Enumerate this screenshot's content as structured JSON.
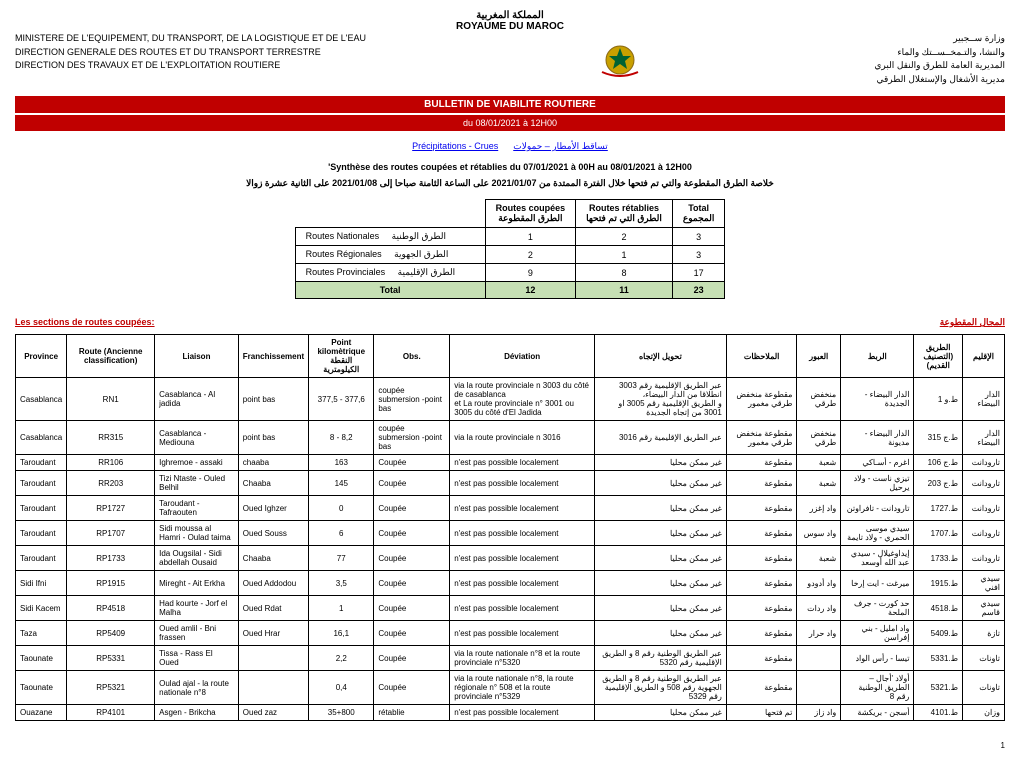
{
  "header": {
    "ar_title1": "المملكة المغربية",
    "fr_title": "ROYAUME DU MAROC",
    "left_line1": "MINISTERE DE L'EQUIPEMENT, DU TRANSPORT, DE LA LOGISTIQUE ET DE L'EAU",
    "left_line2": "DIRECTION GENERALE DES ROUTES ET DU TRANSPORT TERRESTRE",
    "left_line3": "DIRECTION DES TRAVAUX ET DE L'EXPLOITATION ROUTIERE",
    "right_line1": "وزارة ســجبير",
    "right_line2": "والنشا، والتـمخــســتك والماء",
    "right_line3": "المديرية العامة للطرق والنقل البري",
    "right_line4": "مديرية الأشغال والإستغلال الطرقي"
  },
  "bulletin": {
    "title": "BULLETIN DE VIABILITE ROUTIERE",
    "date": "du 08/01/2021 à 12H00"
  },
  "precip": {
    "fr": "Précipitations - Crues",
    "ar": "تساقط الأمطار – حمولات"
  },
  "synthesis": {
    "fr": "'Synthèse des routes coupées et rétablies du 07/01/2021 à 00H au 08/01/2021 à 12H00",
    "ar": "خلاصة الطرق المقطوعة والتي تم فتحها خلال الفترة الممتدة من 2021/01/07 على الساعة الثامنة صباحا إلى 2021/01/08 على الثانية عشرة زوالا"
  },
  "summary": {
    "col_coupees_fr": "Routes coupées",
    "col_coupees_ar": "الطرق المقطوعة",
    "col_retablies_fr": "Routes rétablies",
    "col_retablies_ar": "الطرق التي تم فتحها",
    "col_total": "Total",
    "col_total_ar": "المجموع",
    "rows": [
      {
        "type_fr": "Routes Nationales",
        "type_ar": "الطرق الوطنية",
        "c": "1",
        "r": "2",
        "t": "3"
      },
      {
        "type_fr": "Routes Régionales",
        "type_ar": "الطرق الجهوية",
        "c": "2",
        "r": "1",
        "t": "3"
      },
      {
        "type_fr": "Routes Provinciales",
        "type_ar": "الطرق الإقليمية",
        "c": "9",
        "r": "8",
        "t": "17"
      }
    ],
    "total_label": "Total",
    "total_c": "12",
    "total_r": "11",
    "total_t": "23"
  },
  "section": {
    "title_fr": "Les sections de routes coupées:",
    "title_ar": "المجال المقطوعة"
  },
  "table": {
    "headers": {
      "province": "Province",
      "route": "Route (Ancienne classification)",
      "liaison": "Liaison",
      "franch": "Franchissement",
      "pk1": "Point kilomètrique",
      "pk2": "النقطة الكيلومترية",
      "obs": "Obs.",
      "deviation": "Déviation",
      "tahwil": "تحويل الإتجاه",
      "molah": "الملاحظات",
      "obour": "العبور",
      "ribat": "الربط",
      "tariq1": "الطريق",
      "tariq2": "(التصنيف القديم)",
      "iklim": "الإقليم"
    },
    "rows": [
      {
        "province": "Casablanca",
        "route": "RN1",
        "liaison": "Casablanca - Al jadida",
        "franch": "point bas",
        "pk": "377,5 - 377,6",
        "obs": "coupée submersion -point bas",
        "dev": "via la route provinciale n 3003 du côté de casablanca\net La route provinciale n° 3001 ou 3005 du côté d'El Jadida",
        "tahwil": "عبر الطريق الإقليمية رقم 3003 انطلاقا من الدار البيضاء،\nو الطريق الإقليمية رقم 3005 او 3001 من إتجاه الجديدة",
        "molah": "مقطوعة منخفض طرقي مغمور",
        "obour": "منخفض طرقي",
        "ribat": "الدار البيضاء - الجديدة",
        "tariq": "ط.و 1",
        "iklim": "الدار البيضاء"
      },
      {
        "province": "Casablanca",
        "route": "RR315",
        "liaison": "Casablanca - Mediouna",
        "franch": "point bas",
        "pk": "8 - 8,2",
        "obs": "coupée submersion -point bas",
        "dev": "via la route provinciale n 3016",
        "tahwil": "عبر الطريق الإقليمية رقم 3016",
        "molah": "مقطوعة منخفض طرقي مغمور",
        "obour": "منخفض طرقي",
        "ribat": "الدار البيضاء - مديونة",
        "tariq": "ط.ج 315",
        "iklim": "الدار البيضاء"
      },
      {
        "province": "Taroudant",
        "route": "RR106",
        "liaison": "Ighremoe - assaki",
        "franch": "chaaba",
        "pk": "163",
        "obs": "Coupée",
        "dev": "n'est pas possible localement",
        "tahwil": "غير ممكن محليا",
        "molah": "مقطوعة",
        "obour": "شعبة",
        "ribat": "اغرم - أسـاكي",
        "tariq": "ط.ج 106",
        "iklim": "تارودانت"
      },
      {
        "province": "Taroudant",
        "route": "RR203",
        "liaison": "Tizi Ntaste - Ouled Belhil",
        "franch": "Chaaba",
        "pk": "145",
        "obs": "Coupée",
        "dev": "n'est pas possible localement",
        "tahwil": "غير ممكن محليا",
        "molah": "مقطوعة",
        "obour": "شعبة",
        "ribat": "تيزي ناست - ولاد يرحيل",
        "tariq": "ط.ج 203",
        "iklim": "تارودانت"
      },
      {
        "province": "Taroudant",
        "route": "RP1727",
        "liaison": "Taroudant - Tafraouten",
        "franch": "Oued Ighzer",
        "pk": "0",
        "obs": "Coupée",
        "dev": "n'est pas possible localement",
        "tahwil": "غير ممكن محليا",
        "molah": "مقطوعة",
        "obour": "واد إغزر",
        "ribat": "تارودانت - تافراوتن",
        "tariq": "ط.1727",
        "iklim": "تارودانت"
      },
      {
        "province": "Taroudant",
        "route": "RP1707",
        "liaison": "Sidi moussa al Hamri - Oulad taima",
        "franch": "Oued Souss",
        "pk": "6",
        "obs": "Coupée",
        "dev": "n'est pas possible localement",
        "tahwil": "غير ممكن محليا",
        "molah": "مقطوعة",
        "obour": "واد سوس",
        "ribat": "سيدي موسى الحمري - ولاد تايمة",
        "tariq": "ط.1707",
        "iklim": "تارودانت"
      },
      {
        "province": "Taroudant",
        "route": "RP1733",
        "liaison": "Ida Ougsilal - Sidi abdellah Ousaid",
        "franch": "Chaaba",
        "pk": "77",
        "obs": "Coupée",
        "dev": "n'est pas possible localement",
        "tahwil": "غير ممكن محليا",
        "molah": "مقطوعة",
        "obour": "شعبة",
        "ribat": "إيداوغيلال - سيدي عبد الله أوسعد",
        "tariq": "ط.1733",
        "iklim": "تارودانت"
      },
      {
        "province": "Sidi Ifni",
        "route": "RP1915",
        "liaison": "Mireght - Ait Erkha",
        "franch": "Oued Addodou",
        "pk": "3,5",
        "obs": "Coupée",
        "dev": "n'est pas possible localement",
        "tahwil": "غير ممكن محليا",
        "molah": "مقطوعة",
        "obour": "واد أدودو",
        "ribat": "ميرغت - ايت إرخا",
        "tariq": "ط.1915",
        "iklim": "سيدي افني"
      },
      {
        "province": "Sidi Kacem",
        "route": "RP4518",
        "liaison": "Had kourte - Jorf el Malha",
        "franch": "Oued Rdat",
        "pk": "1",
        "obs": "Coupée",
        "dev": "n'est pas possible localement",
        "tahwil": "غير ممكن محليا",
        "molah": "مقطوعة",
        "obour": "واد ردات",
        "ribat": "حد كورت - جرف الملحة",
        "tariq": "ط.4518",
        "iklim": "سيدي قاسم"
      },
      {
        "province": "Taza",
        "route": "RP5409",
        "liaison": "Oued amlil - Bni frassen",
        "franch": "Oued Hrar",
        "pk": "16,1",
        "obs": "Coupée",
        "dev": "n'est pas possible localement",
        "tahwil": "غير ممكن محليا",
        "molah": "مقطوعة",
        "obour": "واد حرار",
        "ribat": "واد امليل - بني إفراسن",
        "tariq": "ط.5409",
        "iklim": "تازة"
      },
      {
        "province": "Taounate",
        "route": "RP5331",
        "liaison": "Tissa - Rass El Oued",
        "franch": "",
        "pk": "2,2",
        "obs": "Coupée",
        "dev": "via la route nationale n°8 et la route provinciale n°5320",
        "tahwil": "عبر الطريق الوطنية رقم 8 و الطريق الإقليمية رقم 5320",
        "molah": "مقطوعة",
        "obour": "",
        "ribat": "تيسا - رأس الواد",
        "tariq": "ط.5331",
        "iklim": "تاونات"
      },
      {
        "province": "Taounate",
        "route": "RP5321",
        "liaison": "Oulad ajal - la route nationale n°8",
        "franch": "",
        "pk": "0,4",
        "obs": "Coupée",
        "dev": "via la route nationale n°8, la route régionale n° 508 et la route provinciale n°5329",
        "tahwil": "عبر الطريق الوطنية رقم 8 و الطريق الجهوية رقم 508 و الطريق الإقليمية رقم 5329",
        "molah": "مقطوعة",
        "obour": "",
        "ribat": "أولاد 'أجال – الطريق الوطنية رقم 8",
        "tariq": "ط.5321",
        "iklim": "تاونات"
      },
      {
        "province": "Ouazane",
        "route": "RP4101",
        "liaison": "Asgen - Brikcha",
        "franch": "Oued zaz",
        "pk": "35+800",
        "obs": "rétablie",
        "dev": "n'est pas possible localement",
        "tahwil": "غير ممكن محليا",
        "molah": "تم فتحها",
        "obour": "واد زاز",
        "ribat": "أسجن - بريكشة",
        "tariq": "ط.4101",
        "iklim": "وزان"
      }
    ]
  },
  "page_num": "1"
}
